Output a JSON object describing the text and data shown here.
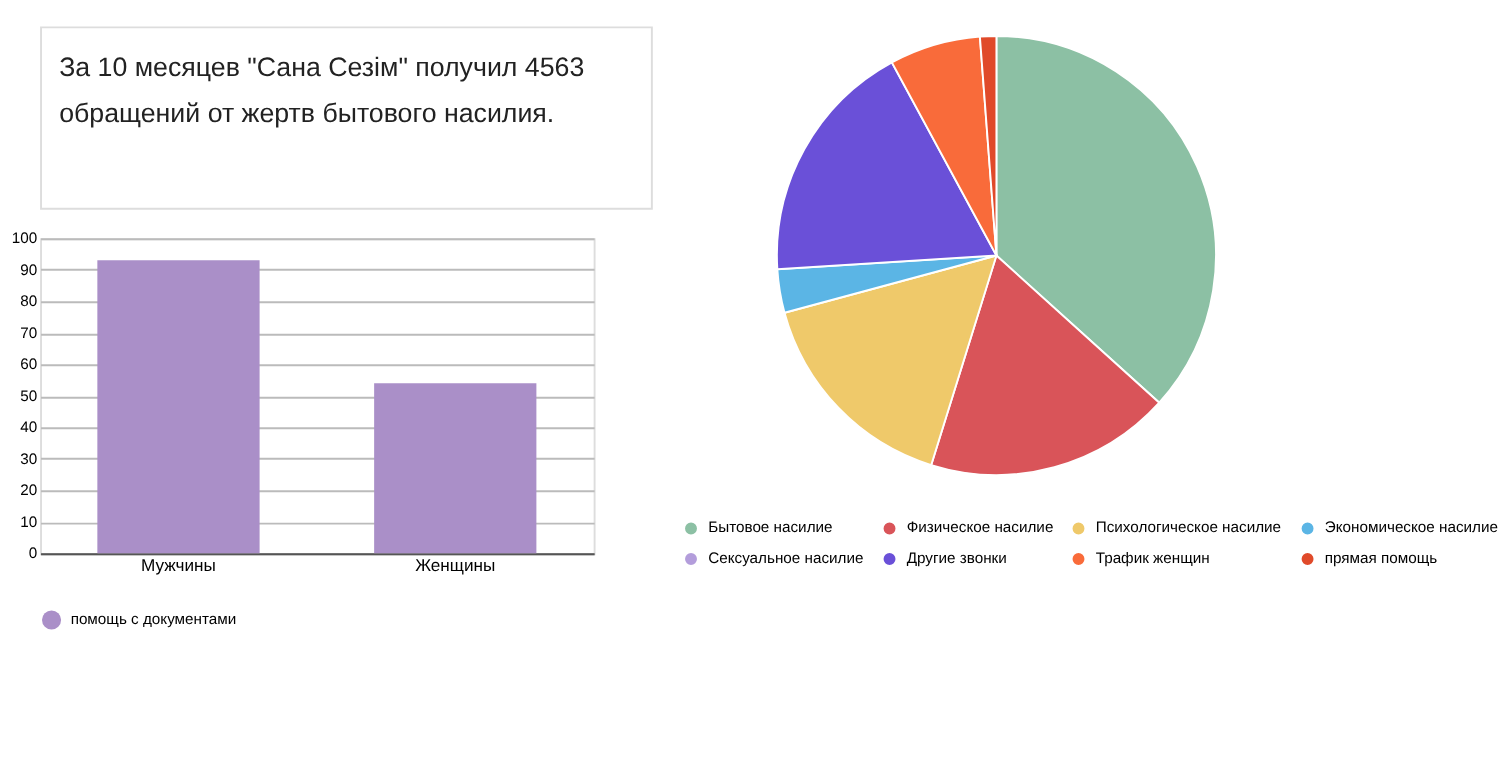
{
  "chart_data": [
    {
      "type": "other",
      "annotations": [
        "За 10 месяцев \"Сана Сезім\" получил 4563 обращений от жертв бытового насилия."
      ]
    },
    {
      "type": "bar",
      "categories": [
        "Мужчины",
        "Женщины"
      ],
      "series": [
        {
          "name": "помощь с документами",
          "color": "#aa8fc8",
          "values": [
            93,
            54
          ]
        }
      ],
      "ylim": [
        0,
        100
      ],
      "yticks": [
        0,
        10,
        20,
        30,
        40,
        50,
        60,
        70,
        80,
        90,
        100
      ],
      "grid": "y",
      "legend": "bottom"
    },
    {
      "type": "pie",
      "categories": [
        "Бытовое насилие",
        "Физическое насилие",
        "Психологическое насилие",
        "Экономическое насилие",
        "Сексуальное насилие",
        "Другие звонки",
        "Трафик женщин",
        "прямая помощь"
      ],
      "values": [
        36.7,
        18.1,
        16,
        3.2,
        0,
        18.1,
        6.7,
        1.2
      ],
      "colors": [
        "#8cc0a4",
        "#d95459",
        "#efc96a",
        "#5bb5e5",
        "#b39ddb",
        "#6a50d8",
        "#f96b3a",
        "#e04a2a"
      ],
      "legend": "bottom"
    }
  ]
}
